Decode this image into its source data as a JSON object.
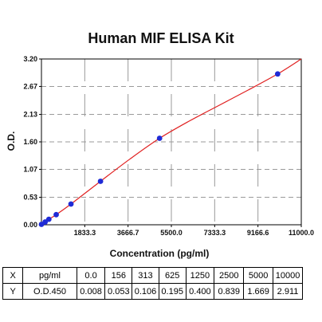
{
  "chart_data": {
    "type": "scatter",
    "title": "Human MIF ELISA Kit",
    "xlabel": "Concentration (pg/ml)",
    "ylabel": "O.D.",
    "xlim": [
      0,
      11000
    ],
    "ylim": [
      0,
      3.2
    ],
    "x_ticks": [
      "1833.3",
      "3666.7",
      "5500.0",
      "7333.3",
      "9166.6",
      "11000.0"
    ],
    "x_tick_values": [
      1833.3,
      3666.7,
      5500.0,
      7333.3,
      9166.6,
      11000.0
    ],
    "y_ticks": [
      "0.00",
      "0.53",
      "1.07",
      "1.60",
      "2.13",
      "2.67",
      "3.20"
    ],
    "y_tick_values": [
      0.0,
      0.53,
      1.07,
      1.6,
      2.13,
      2.67,
      3.2
    ],
    "grid": true,
    "points": {
      "x": [
        0,
        156,
        313,
        625,
        1250,
        2500,
        5000,
        10000
      ],
      "y": [
        0.008,
        0.053,
        0.106,
        0.195,
        0.4,
        0.839,
        1.669,
        2.911
      ]
    },
    "fit_curve": {
      "x": [
        0,
        156,
        313,
        625,
        1250,
        2500,
        3750,
        5000,
        6250,
        7500,
        8750,
        10000,
        11000
      ],
      "y": [
        0.008,
        0.053,
        0.106,
        0.195,
        0.4,
        0.839,
        1.27,
        1.669,
        2.0,
        2.3,
        2.6,
        2.911,
        3.2
      ]
    },
    "colors": {
      "points": "#1f2bd6",
      "curve": "#e02020",
      "grid": "#9a9a9a",
      "axis": "#000000"
    }
  },
  "table": {
    "rows": [
      [
        "X",
        "pg/ml",
        "0.0",
        "156",
        "313",
        "625",
        "1250",
        "2500",
        "5000",
        "10000"
      ],
      [
        "Y",
        "O.D.450",
        "0.008",
        "0.053",
        "0.106",
        "0.195",
        "0.400",
        "0.839",
        "1.669",
        "2.911"
      ]
    ]
  }
}
